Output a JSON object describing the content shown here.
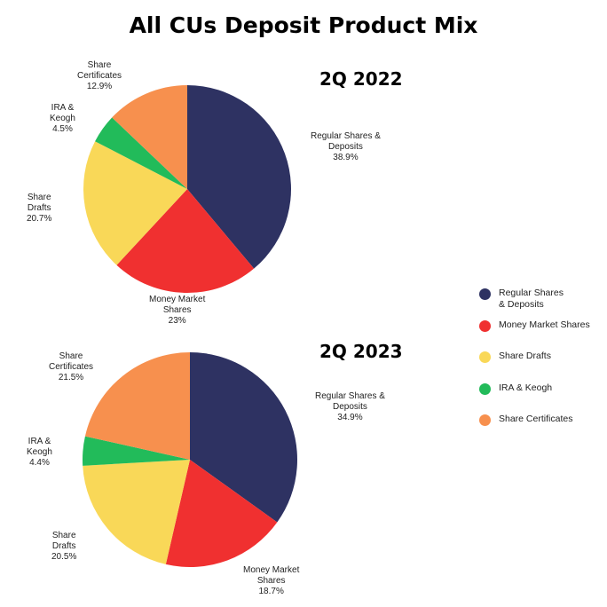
{
  "colors": {
    "Regular Shares & Deposits": "#2e3262",
    "Money Market Shares": "#f03030",
    "Share Drafts": "#f9d858",
    "IRA & Keogh": "#22bb5a",
    "Share Certificates": "#f7904e"
  },
  "legend": [
    {
      "label": "Regular Shares\n& Deposits",
      "series": "Regular Shares & Deposits"
    },
    {
      "label": "Money Market Shares",
      "series": "Money Market Shares"
    },
    {
      "label": "Share Drafts",
      "series": "Share Drafts"
    },
    {
      "label": "IRA & Keogh",
      "series": "IRA & Keogh"
    },
    {
      "label": "Share Certificates",
      "series": "Share Certificates"
    }
  ],
  "chart_data": [
    {
      "type": "pie",
      "title": "All CUs Deposit Product Mix",
      "subtitle": "2Q 2022",
      "categories": [
        "Regular Shares & Deposits",
        "Money Market Shares",
        "Share Drafts",
        "IRA & Keogh",
        "Share Certificates"
      ],
      "values": [
        38.9,
        23,
        20.7,
        4.5,
        12.9
      ],
      "labels": [
        {
          "name": "Regular Shares &\nDeposits",
          "value": "38.9%"
        },
        {
          "name": "Money Market\nShares",
          "value": "23%"
        },
        {
          "name": "Share\nDrafts",
          "value": "20.7%"
        },
        {
          "name": "IRA &\nKeogh",
          "value": "4.5%"
        },
        {
          "name": "Share\nCertificates",
          "value": "12.9%"
        }
      ],
      "legend_position": "right"
    },
    {
      "type": "pie",
      "title": "All CUs Deposit Product Mix",
      "subtitle": "2Q 2023",
      "categories": [
        "Regular Shares & Deposits",
        "Money Market Shares",
        "Share Drafts",
        "IRA & Keogh",
        "Share Certificates"
      ],
      "values": [
        34.9,
        18.7,
        20.5,
        4.4,
        21.5
      ],
      "labels": [
        {
          "name": "Regular Shares &\nDeposits",
          "value": "34.9%"
        },
        {
          "name": "Money Market\nShares",
          "value": "18.7%"
        },
        {
          "name": "Share\nDrafts",
          "value": "20.5%"
        },
        {
          "name": "IRA &\nKeogh",
          "value": "4.4%"
        },
        {
          "name": "Share\nCertificates",
          "value": "21.5%"
        }
      ],
      "legend_position": "right"
    }
  ]
}
